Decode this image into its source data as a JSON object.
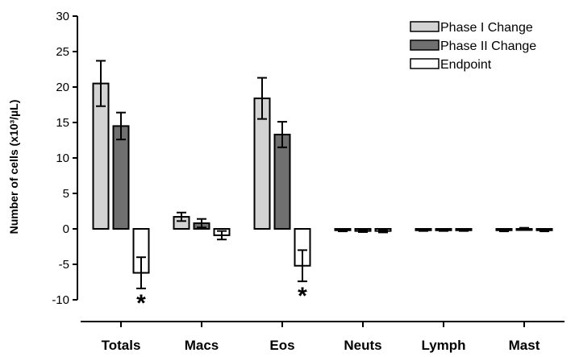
{
  "chart_data": {
    "type": "bar",
    "ylabel": "Number of cells (x10³/µL)",
    "ylim": [
      -10,
      30
    ],
    "y_ticks": [
      -10,
      -5,
      0,
      5,
      10,
      15,
      20,
      25,
      30
    ],
    "grid": false,
    "legend_position": "top-right",
    "categories": [
      "Totals",
      "Macs",
      "Eos",
      "Neuts",
      "Lymph",
      "Mast"
    ],
    "series": [
      {
        "name": "Phase I Change",
        "color": "#d3d3d3",
        "values": [
          20.5,
          1.7,
          18.4,
          -0.2,
          -0.2,
          -0.2
        ],
        "errors": [
          3.2,
          0.6,
          2.9,
          0.15,
          0.1,
          0.15
        ]
      },
      {
        "name": "Phase II Change",
        "color": "#707070",
        "values": [
          14.5,
          0.8,
          13.3,
          -0.3,
          -0.2,
          0.0
        ],
        "errors": [
          1.9,
          0.6,
          1.8,
          0.15,
          0.1,
          0.15
        ]
      },
      {
        "name": "Endpoint",
        "color": "#ffffff",
        "values": [
          -6.2,
          -0.9,
          -5.2,
          -0.3,
          -0.2,
          -0.2
        ],
        "errors": [
          2.2,
          0.6,
          2.2,
          0.2,
          0.1,
          0.15
        ]
      }
    ],
    "annotations": [
      {
        "category": "Totals",
        "series": "Endpoint",
        "text": "*"
      },
      {
        "category": "Eos",
        "series": "Endpoint",
        "text": "*"
      }
    ]
  }
}
